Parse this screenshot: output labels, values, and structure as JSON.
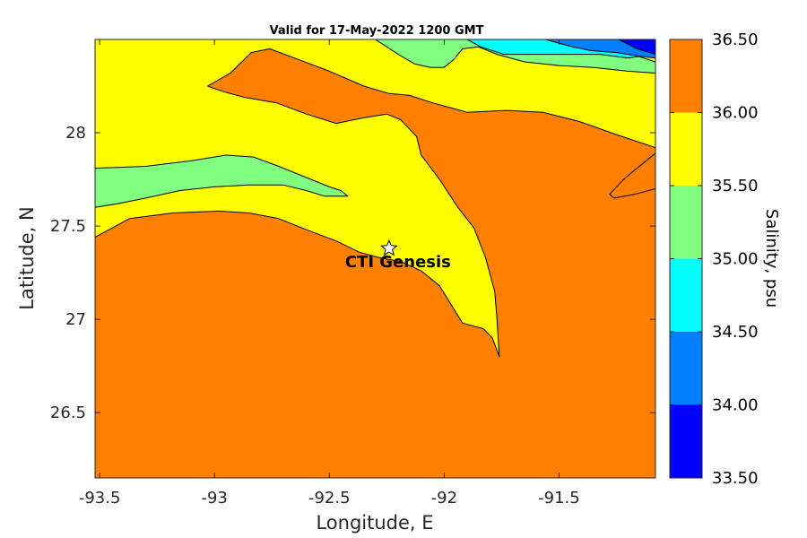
{
  "title": "Valid for 17-May-2022 1200 GMT",
  "chart_data": {
    "type": "heatmap",
    "title": "Valid for 17-May-2022 1200 GMT",
    "xlabel": "Longitude, E",
    "ylabel": "Latitude, N",
    "xlim": [
      -93.52,
      -91.08
    ],
    "ylim": [
      26.15,
      28.5
    ],
    "x_ticks": [
      "-93.5",
      "-93",
      "-92.5",
      "-92",
      "-91.5"
    ],
    "y_ticks": [
      "26.5",
      "27",
      "27.5",
      "28"
    ],
    "colorbar": {
      "label": "Salinity, psu",
      "levels": [
        "36.50",
        "36.00",
        "35.50",
        "35.00",
        "34.50",
        "34.00",
        "33.50"
      ],
      "range": [
        33.5,
        36.5
      ],
      "bands": [
        {
          "min": 36.0,
          "max": 36.5,
          "color": "#ff7f00"
        },
        {
          "min": 35.5,
          "max": 36.0,
          "color": "#ffff00"
        },
        {
          "min": 35.0,
          "max": 35.5,
          "color": "#80ff80"
        },
        {
          "min": 34.5,
          "max": 35.0,
          "color": "#00ffff"
        },
        {
          "min": 34.0,
          "max": 34.5,
          "color": "#0080ff"
        },
        {
          "min": 33.5,
          "max": 34.0,
          "color": "#0000ff"
        }
      ]
    },
    "station": {
      "name": "CTI Genesis",
      "lon": -92.24,
      "lat": 27.38
    },
    "contour_regions": [
      {
        "value_band": "35.5-36.0",
        "color": "#ffff00",
        "points": [
          [
            -93.52,
            28.5
          ],
          [
            -91.08,
            28.5
          ],
          [
            -91.08,
            26.15
          ],
          [
            -93.52,
            26.15
          ]
        ]
      },
      {
        "value_band": "36.0-36.5",
        "color": "#ff7f00",
        "points": [
          [
            -93.52,
            27.44
          ],
          [
            -93.37,
            27.54
          ],
          [
            -93.18,
            27.57
          ],
          [
            -92.98,
            27.58
          ],
          [
            -92.85,
            27.57
          ],
          [
            -92.72,
            27.54
          ],
          [
            -92.6,
            27.48
          ],
          [
            -92.47,
            27.42
          ],
          [
            -92.37,
            27.36
          ],
          [
            -92.28,
            27.33
          ],
          [
            -92.19,
            27.31
          ],
          [
            -92.1,
            27.26
          ],
          [
            -92.02,
            27.18
          ],
          [
            -91.97,
            27.08
          ],
          [
            -91.92,
            26.98
          ],
          [
            -91.83,
            26.95
          ],
          [
            -91.79,
            26.9
          ],
          [
            -91.76,
            26.8
          ],
          [
            -91.77,
            27.0
          ],
          [
            -91.78,
            27.15
          ],
          [
            -91.82,
            27.33
          ],
          [
            -91.87,
            27.49
          ],
          [
            -91.94,
            27.6
          ],
          [
            -92.02,
            27.75
          ],
          [
            -92.1,
            27.88
          ],
          [
            -92.12,
            27.98
          ],
          [
            -92.19,
            28.07
          ],
          [
            -92.25,
            28.1
          ],
          [
            -92.35,
            28.08
          ],
          [
            -92.47,
            28.05
          ],
          [
            -92.6,
            28.1
          ],
          [
            -92.73,
            28.16
          ],
          [
            -92.87,
            28.19
          ],
          [
            -92.96,
            28.22
          ],
          [
            -93.03,
            28.25
          ],
          [
            -92.93,
            28.32
          ],
          [
            -92.84,
            28.43
          ],
          [
            -92.76,
            28.45
          ],
          [
            -92.65,
            28.4
          ],
          [
            -92.5,
            28.33
          ],
          [
            -92.35,
            28.25
          ],
          [
            -92.24,
            28.21
          ],
          [
            -92.15,
            28.2
          ],
          [
            -92.05,
            28.16
          ],
          [
            -91.9,
            28.11
          ],
          [
            -91.73,
            28.12
          ],
          [
            -91.57,
            28.11
          ],
          [
            -91.41,
            28.06
          ],
          [
            -91.25,
            27.99
          ],
          [
            -91.08,
            27.92
          ],
          [
            -91.08,
            27.7
          ],
          [
            -91.17,
            27.67
          ],
          [
            -91.26,
            27.65
          ],
          [
            -91.28,
            27.67
          ],
          [
            -91.21,
            27.76
          ],
          [
            -91.13,
            27.84
          ],
          [
            -91.08,
            27.89
          ],
          [
            -91.08,
            26.15
          ],
          [
            -93.52,
            26.15
          ]
        ]
      },
      {
        "value_band": "35.0-35.5",
        "color": "#80ff80",
        "points": [
          [
            -93.52,
            27.81
          ],
          [
            -93.3,
            27.82
          ],
          [
            -93.1,
            27.85
          ],
          [
            -92.95,
            27.88
          ],
          [
            -92.83,
            27.87
          ],
          [
            -92.72,
            27.82
          ],
          [
            -92.62,
            27.77
          ],
          [
            -92.5,
            27.71
          ],
          [
            -92.45,
            27.69
          ],
          [
            -92.42,
            27.66
          ],
          [
            -92.52,
            27.66
          ],
          [
            -92.6,
            27.69
          ],
          [
            -92.7,
            27.72
          ],
          [
            -92.85,
            27.72
          ],
          [
            -93.0,
            27.71
          ],
          [
            -93.15,
            27.69
          ],
          [
            -93.3,
            27.65
          ],
          [
            -93.42,
            27.62
          ],
          [
            -93.52,
            27.6
          ]
        ]
      },
      {
        "value_band": "35.0-35.5",
        "color": "#80ff80",
        "points": [
          [
            -92.3,
            28.5
          ],
          [
            -91.24,
            28.5
          ],
          [
            -91.18,
            28.42
          ],
          [
            -91.08,
            28.38
          ],
          [
            -91.08,
            28.32
          ],
          [
            -91.2,
            28.33
          ],
          [
            -91.35,
            28.35
          ],
          [
            -91.5,
            28.36
          ],
          [
            -91.65,
            28.38
          ],
          [
            -91.77,
            28.42
          ],
          [
            -91.85,
            28.46
          ],
          [
            -91.92,
            28.45
          ],
          [
            -91.96,
            28.39
          ],
          [
            -92.0,
            28.35
          ],
          [
            -92.06,
            28.35
          ],
          [
            -92.13,
            28.37
          ],
          [
            -92.2,
            28.42
          ]
        ]
      },
      {
        "value_band": "34.5-35.0",
        "color": "#00ffff",
        "points": [
          [
            -91.95,
            28.5
          ],
          [
            -91.24,
            28.5
          ],
          [
            -91.2,
            28.45
          ],
          [
            -91.15,
            28.41
          ],
          [
            -91.2,
            28.4
          ],
          [
            -91.32,
            28.42
          ],
          [
            -91.48,
            28.42
          ],
          [
            -91.62,
            28.42
          ],
          [
            -91.74,
            28.42
          ],
          [
            -91.84,
            28.46
          ],
          [
            -91.9,
            28.5
          ]
        ]
      },
      {
        "value_band": "34.0-34.5",
        "color": "#0080ff",
        "points": [
          [
            -91.56,
            28.5
          ],
          [
            -91.08,
            28.5
          ],
          [
            -91.08,
            28.4
          ],
          [
            -91.15,
            28.41
          ],
          [
            -91.25,
            28.43
          ],
          [
            -91.36,
            28.44
          ],
          [
            -91.44,
            28.46
          ]
        ]
      },
      {
        "value_band": "33.5-34.0",
        "color": "#0000ff",
        "points": [
          [
            -91.24,
            28.5
          ],
          [
            -91.08,
            28.5
          ],
          [
            -91.08,
            28.42
          ],
          [
            -91.16,
            28.45
          ]
        ]
      }
    ]
  }
}
